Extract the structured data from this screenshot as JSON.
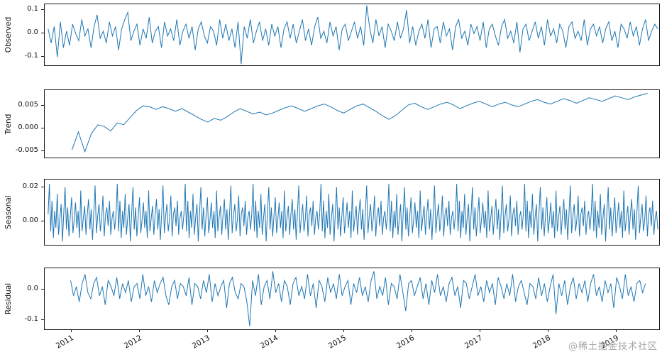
{
  "chart_data": {
    "type": "line",
    "description": "Seasonal decomposition time-series plot with four stacked panels: Observed, Trend, Seasonal, Residual",
    "line_color": "#1f77b4",
    "x_domain": [
      2010.6,
      2019.62
    ],
    "x_ticks": [
      2011,
      2012,
      2013,
      2014,
      2015,
      2016,
      2017,
      2018,
      2019
    ],
    "x_tick_labels": [
      "2011",
      "2012",
      "2013",
      "2014",
      "2015",
      "2016",
      "2017",
      "2018",
      "2019"
    ],
    "watermark": "@稀土掘金技术社区",
    "panels": [
      {
        "name": "observed",
        "ylabel": "Observed",
        "ylim": [
          -0.135,
          0.125
        ],
        "yticks": [
          0.1,
          0.0,
          -0.1
        ],
        "ytick_labels": [
          "0.1",
          "0.0",
          "-0.1"
        ],
        "x_start": 2010.65,
        "x_end": 2019.6,
        "values": [
          0.02,
          -0.04,
          0.03,
          -0.1,
          0.05,
          -0.06,
          0.01,
          -0.05,
          0.04,
          0.0,
          -0.03,
          0.06,
          -0.01,
          0.02,
          -0.06,
          0.03,
          0.08,
          -0.02,
          0.01,
          -0.04,
          0.05,
          -0.01,
          0.03,
          -0.07,
          0.02,
          0.06,
          0.09,
          -0.03,
          0.01,
          0.04,
          -0.05,
          0.02,
          -0.02,
          0.07,
          -0.04,
          0.01,
          0.03,
          -0.06,
          0.05,
          -0.01,
          0.02,
          -0.03,
          0.06,
          -0.05,
          0.01,
          0.04,
          -0.02,
          0.03,
          -0.07,
          0.02,
          0.05,
          -0.01,
          -0.04,
          0.03,
          0.01,
          -0.05,
          0.06,
          -0.02,
          0.04,
          -0.03,
          0.02,
          -0.06,
          0.05,
          -0.13,
          0.03,
          -0.02,
          0.06,
          -0.04,
          0.01,
          0.05,
          -0.03,
          0.02,
          -0.05,
          0.04,
          -0.01,
          0.03,
          -0.06,
          0.02,
          0.05,
          -0.02,
          0.04,
          -0.04,
          0.01,
          0.06,
          -0.03,
          0.02,
          -0.05,
          0.03,
          0.07,
          -0.02,
          0.01,
          -0.04,
          0.05,
          -0.01,
          0.03,
          -0.07,
          0.02,
          0.04,
          -0.03,
          0.01,
          0.05,
          -0.02,
          0.03,
          -0.05,
          0.12,
          0.02,
          -0.04,
          0.06,
          -0.01,
          0.03,
          -0.06,
          0.04,
          0.01,
          -0.03,
          0.05,
          -0.02,
          0.02,
          0.1,
          -0.04,
          0.03,
          -0.05,
          0.01,
          0.04,
          -0.02,
          0.06,
          -0.06,
          0.02,
          0.03,
          -0.04,
          0.05,
          -0.01,
          0.02,
          -0.07,
          0.03,
          0.06,
          -0.02,
          0.01,
          -0.05,
          0.04,
          0.0,
          0.03,
          -0.03,
          0.05,
          -0.06,
          0.02,
          0.04,
          -0.01,
          -0.05,
          0.03,
          0.06,
          -0.02,
          0.01,
          -0.04,
          0.05,
          -0.08,
          0.02,
          0.04,
          -0.03,
          0.01,
          0.05,
          -0.02,
          0.03,
          -0.05,
          0.06,
          -0.01,
          0.02,
          -0.04,
          0.04,
          0.01,
          -0.06,
          0.03,
          0.05,
          -0.02,
          0.01,
          -0.03,
          0.06,
          -0.05,
          0.02,
          0.04,
          -0.01,
          0.03,
          -0.04,
          0.02,
          0.05,
          -0.03,
          0.01,
          -0.06,
          0.04,
          0.02,
          -0.02,
          0.05,
          -0.01,
          0.03,
          -0.05,
          0.02,
          0.06,
          -0.03,
          0.01,
          0.04,
          0.02
        ]
      },
      {
        "name": "trend",
        "ylabel": "Trend",
        "ylim": [
          -0.0065,
          0.0085
        ],
        "yticks": [
          0.005,
          0.0,
          -0.005
        ],
        "ytick_labels": [
          "0.005",
          "0.000",
          "-0.005"
        ],
        "x_start": 2011.0,
        "x_end": 2019.45,
        "values": [
          -0.0048,
          -0.0008,
          -0.0052,
          -0.0012,
          0.0008,
          0.0004,
          -0.0006,
          0.0012,
          0.0008,
          0.0024,
          0.004,
          0.005,
          0.0048,
          0.0042,
          0.0048,
          0.0044,
          0.0038,
          0.0044,
          0.0036,
          0.0028,
          0.002,
          0.0014,
          0.0022,
          0.0018,
          0.0026,
          0.0036,
          0.0044,
          0.0038,
          0.0032,
          0.0036,
          0.003,
          0.0034,
          0.004,
          0.0046,
          0.005,
          0.0044,
          0.0038,
          0.0044,
          0.005,
          0.0054,
          0.0048,
          0.004,
          0.0034,
          0.0042,
          0.005,
          0.0054,
          0.0046,
          0.0038,
          0.0028,
          0.002,
          0.0028,
          0.004,
          0.0052,
          0.0056,
          0.0048,
          0.0042,
          0.0048,
          0.0054,
          0.0058,
          0.0052,
          0.0044,
          0.005,
          0.0056,
          0.006,
          0.0054,
          0.0048,
          0.0054,
          0.0058,
          0.0052,
          0.0048,
          0.0054,
          0.006,
          0.0064,
          0.0058,
          0.0054,
          0.006,
          0.0066,
          0.0062,
          0.0056,
          0.0062,
          0.0068,
          0.0064,
          0.006,
          0.0066,
          0.0072,
          0.0068,
          0.0064,
          0.007,
          0.0074,
          0.0078
        ]
      },
      {
        "name": "seasonal",
        "ylabel": "Seasonal",
        "ylim": [
          -0.014,
          0.0245
        ],
        "yticks": [
          0.02,
          0.0
        ],
        "ytick_labels": [
          "0.02",
          "0.00"
        ],
        "x_start": 2010.65,
        "x_end": 2019.6,
        "repeats": 9,
        "pattern": [
          0.004,
          0.022,
          -0.006,
          0.012,
          -0.01,
          0.006,
          -0.004,
          0.016,
          -0.008,
          0.002,
          0.01,
          -0.012,
          0.005,
          0.02,
          -0.005,
          0.008,
          -0.009,
          0.003,
          0.014,
          -0.007,
          0.001,
          0.011,
          -0.004,
          0.006,
          -0.01,
          0.018,
          -0.006,
          0.002,
          0.009,
          -0.008,
          0.004,
          0.013,
          -0.005,
          0.007,
          -0.011,
          0.005,
          0.021,
          -0.007,
          0.003,
          0.01,
          -0.006,
          0.001,
          0.015,
          -0.009,
          0.004,
          0.008,
          -0.003,
          0.012,
          -0.008,
          0.002,
          0.006,
          -0.005
        ]
      },
      {
        "name": "residual",
        "ylabel": "Residual",
        "ylim": [
          -0.13,
          0.07
        ],
        "yticks": [
          0.0,
          -0.1
        ],
        "ytick_labels": [
          "0.0",
          "-0.1"
        ],
        "x_start": 2010.98,
        "x_end": 2019.42,
        "values": [
          0.03,
          -0.02,
          0.01,
          -0.04,
          0.02,
          0.05,
          -0.01,
          -0.03,
          0.02,
          0.04,
          -0.02,
          0.01,
          -0.05,
          0.03,
          0.01,
          -0.02,
          0.04,
          -0.03,
          0.02,
          -0.01,
          0.03,
          -0.04,
          0.01,
          0.02,
          -0.03,
          0.05,
          -0.02,
          0.01,
          -0.04,
          0.03,
          -0.01,
          0.02,
          0.04,
          -0.02,
          -0.05,
          0.01,
          0.03,
          -0.03,
          0.02,
          0.01,
          -0.02,
          0.04,
          -0.05,
          0.02,
          0.01,
          -0.03,
          0.03,
          -0.01,
          0.05,
          -0.04,
          0.02,
          -0.02,
          0.01,
          0.03,
          -0.06,
          0.02,
          0.04,
          -0.01,
          -0.03,
          0.02,
          0.01,
          -0.04,
          -0.12,
          0.03,
          -0.02,
          0.05,
          -0.05,
          0.01,
          0.03,
          -0.03,
          0.06,
          -0.01,
          0.02,
          -0.04,
          0.03,
          0.01,
          -0.05,
          0.02,
          0.04,
          -0.02,
          0.01,
          -0.03,
          0.05,
          -0.02,
          0.02,
          -0.06,
          0.03,
          0.01,
          -0.04,
          0.04,
          -0.01,
          0.02,
          -0.03,
          0.05,
          -0.02,
          0.01,
          0.03,
          -0.05,
          0.02,
          -0.01,
          0.04,
          -0.02,
          0.01,
          -0.04,
          0.03,
          0.06,
          -0.03,
          0.01,
          -0.02,
          0.04,
          -0.05,
          0.02,
          0.01,
          -0.03,
          0.05,
          -0.01,
          -0.07,
          0.02,
          0.03,
          -0.02,
          0.01,
          0.04,
          -0.03,
          0.02,
          -0.05,
          0.03,
          -0.01,
          0.05,
          -0.02,
          0.01,
          -0.04,
          0.02,
          0.04,
          -0.02,
          0.01,
          -0.06,
          0.03,
          0.02,
          -0.03,
          0.01,
          0.05,
          -0.02,
          0.01,
          -0.04,
          0.03,
          -0.01,
          0.02,
          -0.05,
          0.04,
          0.01,
          -0.03,
          0.02,
          -0.02,
          0.05,
          -0.04,
          0.01,
          0.03,
          -0.01,
          -0.05,
          0.02,
          0.01,
          -0.03,
          0.04,
          -0.02,
          0.02,
          -0.04,
          0.01,
          0.05,
          -0.08,
          0.02,
          -0.02,
          0.03,
          -0.05,
          0.01,
          0.04,
          -0.03,
          0.02,
          -0.01,
          0.03,
          -0.04,
          0.02,
          0.05,
          -0.02,
          0.01,
          -0.04,
          0.03,
          -0.01,
          0.02,
          -0.06,
          0.04,
          0.01,
          -0.03,
          0.05,
          -0.02,
          0.01,
          -0.04,
          0.02,
          0.03,
          -0.01,
          0.02
        ]
      }
    ]
  }
}
